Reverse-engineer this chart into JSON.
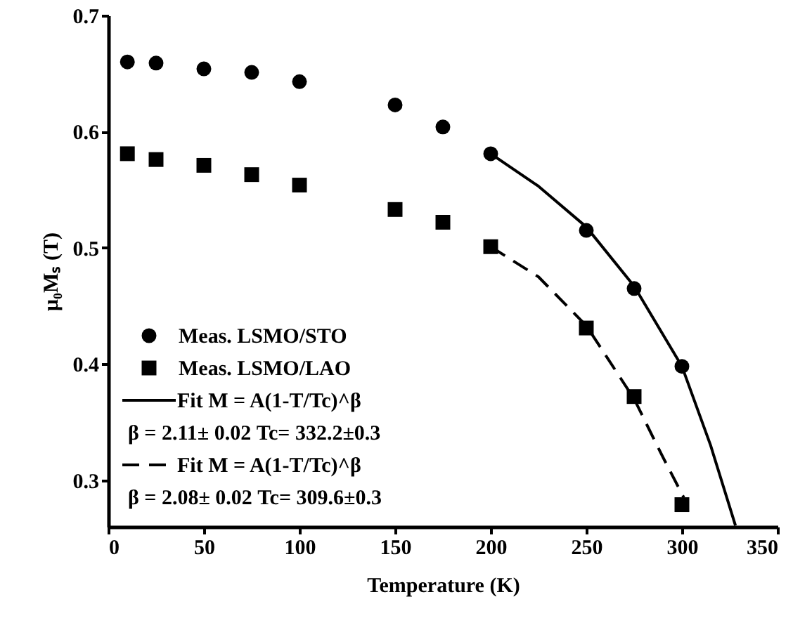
{
  "chart_data": {
    "type": "scatter",
    "xlabel": "Temperature (K)",
    "ylabel": "μ₀Mₛ (T)",
    "xlim": [
      0,
      350
    ],
    "xticks": [
      0,
      50,
      100,
      150,
      200,
      250,
      300,
      350
    ],
    "ylim": [
      0.26,
      0.7
    ],
    "yticks": [
      0.3,
      0.4,
      0.5,
      0.6,
      0.7
    ],
    "grid": false,
    "legend": "bottom left",
    "series": [
      {
        "name": "Meas. LSMO/STO",
        "marker": "circle",
        "color": "#000000",
        "x": [
          10,
          25,
          50,
          75,
          100,
          150,
          175,
          200,
          250,
          275,
          300
        ],
        "values": [
          0.66,
          0.659,
          0.654,
          0.651,
          0.643,
          0.623,
          0.604,
          0.581,
          0.515,
          0.465,
          0.398
        ]
      },
      {
        "name": "Meas. LSMO/LAO",
        "marker": "square",
        "color": "#000000",
        "x": [
          10,
          25,
          50,
          75,
          100,
          150,
          175,
          200,
          250,
          275,
          300
        ],
        "values": [
          0.581,
          0.576,
          0.571,
          0.563,
          0.554,
          0.533,
          0.522,
          0.501,
          0.431,
          0.372,
          0.279
        ]
      },
      {
        "name": "Fit M = A(1-T/Tc)^β",
        "type": "line",
        "line_style": "solid",
        "color": "#000000",
        "x": [
          200,
          225,
          250,
          275,
          300,
          315,
          328
        ],
        "values": [
          0.581,
          0.553,
          0.518,
          0.467,
          0.398,
          0.33,
          0.261
        ]
      },
      {
        "name": "Fit M = A(1-T/Tc)^β",
        "type": "line",
        "line_style": "dashed",
        "color": "#000000",
        "x": [
          200,
          225,
          250,
          275,
          290,
          301
        ],
        "values": [
          0.501,
          0.475,
          0.433,
          0.37,
          0.32,
          0.285
        ]
      }
    ],
    "annotations": [
      "β = 2.11± 0.02   Tc= 332.2±0.3",
      "β = 2.08± 0.02   Tc= 309.6±0.3"
    ]
  }
}
